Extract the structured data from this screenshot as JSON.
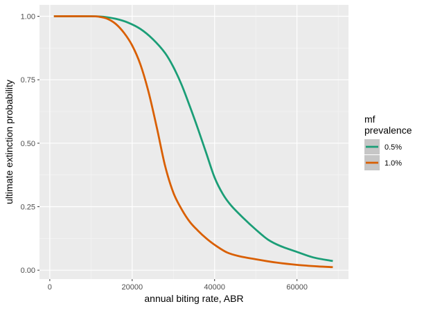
{
  "chart_data": {
    "type": "line",
    "xlabel": "annual biting rate, ABR",
    "ylabel": "ultimate extinction probability",
    "xlim": [
      -2500,
      72500
    ],
    "ylim": [
      -0.035,
      1.045
    ],
    "x_ticks": [
      0,
      20000,
      40000,
      60000
    ],
    "x_tick_labels": [
      "0",
      "20000",
      "40000",
      "60000"
    ],
    "y_ticks": [
      0,
      0.25,
      0.5,
      0.75,
      1.0
    ],
    "y_tick_labels": [
      "0.00",
      "0.25",
      "0.50",
      "0.75",
      "1.00"
    ],
    "grid": true,
    "legend": {
      "title_lines": [
        "mf",
        "prevalence"
      ],
      "placement": "right"
    },
    "series": [
      {
        "name": "0.5%",
        "color": "#1b9e77",
        "x": [
          1000,
          10000,
          13000,
          16000,
          19000,
          22000,
          25000,
          28000,
          30000,
          32000,
          34000,
          36000,
          38000,
          40000,
          42000,
          44000,
          47000,
          50000,
          53000,
          56000,
          60000,
          64000,
          68700
        ],
        "y": [
          1.0,
          1.0,
          0.998,
          0.99,
          0.975,
          0.95,
          0.91,
          0.855,
          0.8,
          0.73,
          0.645,
          0.555,
          0.46,
          0.365,
          0.3,
          0.255,
          0.205,
          0.16,
          0.12,
          0.095,
          0.072,
          0.05,
          0.036
        ]
      },
      {
        "name": "1.0%",
        "color": "#d95f02",
        "x": [
          1000,
          10000,
          12000,
          14000,
          16000,
          18000,
          20000,
          22000,
          24000,
          26000,
          28000,
          30000,
          32000,
          34000,
          36000,
          38000,
          40000,
          43000,
          46000,
          50000,
          55000,
          60000,
          65000,
          68700
        ],
        "y": [
          1.0,
          1.0,
          0.998,
          0.99,
          0.97,
          0.935,
          0.885,
          0.81,
          0.7,
          0.56,
          0.41,
          0.305,
          0.24,
          0.19,
          0.155,
          0.125,
          0.1,
          0.07,
          0.055,
          0.043,
          0.03,
          0.021,
          0.015,
          0.012
        ]
      }
    ]
  }
}
